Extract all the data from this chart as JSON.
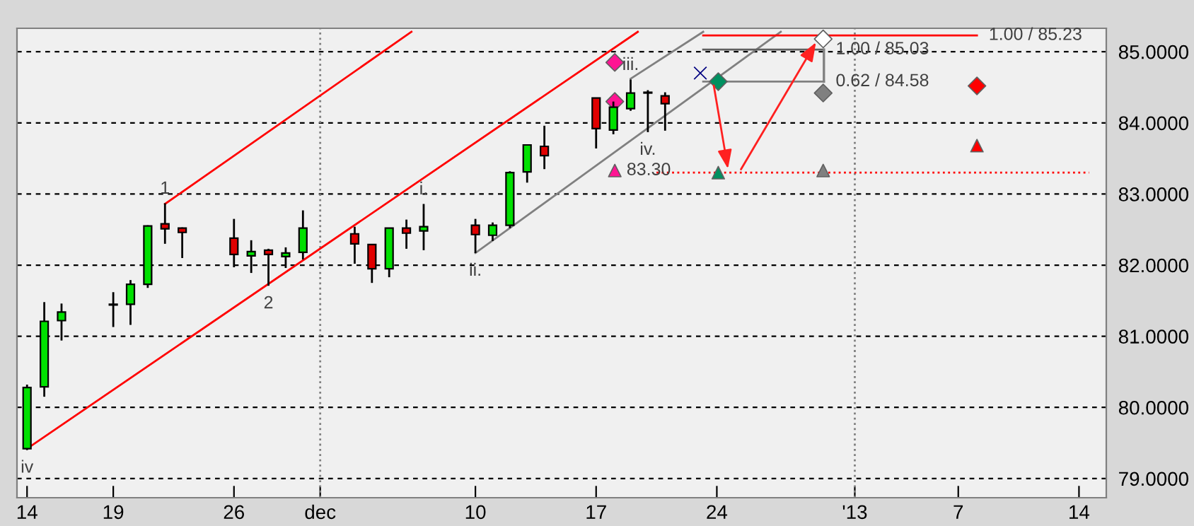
{
  "chart_data": {
    "type": "candlestick",
    "x": [
      "2012-11-14",
      "2012-11-15",
      "2012-11-16",
      "2012-11-19",
      "2012-11-20",
      "2012-11-21",
      "2012-11-22",
      "2012-11-23",
      "2012-11-26",
      "2012-11-27",
      "2012-11-28",
      "2012-11-29",
      "2012-11-30",
      "2012-12-03",
      "2012-12-04",
      "2012-12-05",
      "2012-12-06",
      "2012-12-07",
      "2012-12-10",
      "2012-12-11",
      "2012-12-12",
      "2012-12-13",
      "2012-12-14",
      "2012-12-17",
      "2012-12-18",
      "2012-12-19",
      "2012-12-20",
      "2012-12-21"
    ],
    "ohlc": [
      [
        79.42,
        80.32,
        79.4,
        80.28
      ],
      [
        80.29,
        81.48,
        80.15,
        81.21
      ],
      [
        81.22,
        81.46,
        80.94,
        81.34
      ],
      [
        81.44,
        81.62,
        81.13,
        81.45
      ],
      [
        81.45,
        81.79,
        81.16,
        81.73
      ],
      [
        81.73,
        82.56,
        81.68,
        82.55
      ],
      [
        82.58,
        82.87,
        82.3,
        82.51
      ],
      [
        82.52,
        82.53,
        82.1,
        82.46
      ],
      [
        82.38,
        82.65,
        81.97,
        82.15
      ],
      [
        82.13,
        82.35,
        81.89,
        82.19
      ],
      [
        82.21,
        82.23,
        81.71,
        82.15
      ],
      [
        82.12,
        82.25,
        81.96,
        82.17
      ],
      [
        82.18,
        82.77,
        82.08,
        82.52
      ],
      [
        82.44,
        82.54,
        82.02,
        82.3
      ],
      [
        82.29,
        82.29,
        81.75,
        81.95
      ],
      [
        81.95,
        82.52,
        81.83,
        82.52
      ],
      [
        82.52,
        82.64,
        82.23,
        82.45
      ],
      [
        82.48,
        82.86,
        82.21,
        82.54
      ],
      [
        82.56,
        82.65,
        82.17,
        82.43
      ],
      [
        82.42,
        82.6,
        82.34,
        82.56
      ],
      [
        82.56,
        83.32,
        82.52,
        83.3
      ],
      [
        83.31,
        83.69,
        83.16,
        83.69
      ],
      [
        83.67,
        83.96,
        83.35,
        83.54
      ],
      [
        84.35,
        84.35,
        83.64,
        83.92
      ],
      [
        83.9,
        84.3,
        83.84,
        84.22
      ],
      [
        84.2,
        84.61,
        84.17,
        84.42
      ],
      [
        84.42,
        84.46,
        83.87,
        84.42
      ],
      [
        84.38,
        84.43,
        83.89,
        84.27
      ]
    ],
    "colors": [
      "#00e000",
      "#00e000",
      "#00e000",
      "#000000",
      "#00e000",
      "#00e000",
      "#e00000",
      "#e00000",
      "#e00000",
      "#00e000",
      "#e00000",
      "#00e000",
      "#00e000",
      "#e00000",
      "#e00000",
      "#00e000",
      "#e00000",
      "#00e000",
      "#e00000",
      "#00e000",
      "#00e000",
      "#00e000",
      "#e00000",
      "#e00000",
      "#00e000",
      "#00e000",
      "#000000",
      "#e00000"
    ],
    "series": [
      {
        "type": "line",
        "color": "#ff0000",
        "x": [
          "2012-11-14",
          "2012-12-19T10:00"
        ],
        "values": [
          79.42,
          85.28
        ]
      },
      {
        "type": "line",
        "color": "#ff0000",
        "x": [
          "2012-11-22",
          "2012-12-06T07:00"
        ],
        "values": [
          82.86,
          85.28
        ]
      },
      {
        "type": "line",
        "color": "#808080",
        "x": [
          "2012-12-10",
          "2012-12-27T17:00"
        ],
        "values": [
          82.17,
          85.28
        ]
      },
      {
        "type": "line",
        "color": "#808080",
        "x": [
          "2012-12-19",
          "2012-12-23T05:00"
        ],
        "values": [
          84.62,
          85.28
        ]
      },
      {
        "type": "line",
        "color": "#ff0000",
        "x": [
          "2012-12-23T05:00",
          "2013-01-08T02:00"
        ],
        "values": [
          85.23,
          85.23
        ]
      },
      {
        "type": "line",
        "color": "#606060",
        "x": [
          "2012-12-23T05:00",
          "2012-12-30T05:00"
        ],
        "values": [
          85.03,
          85.03
        ]
      },
      {
        "type": "line",
        "color": "#808080",
        "x": [
          "2012-12-23T05:00",
          "2012-12-30T05:00"
        ],
        "values": [
          84.58,
          84.58
        ]
      },
      {
        "type": "line",
        "color": "#ff0000",
        "line_style": "dotted",
        "x": [
          "2012-12-20T12:00",
          "2013-01-14T14:00"
        ],
        "values": [
          83.3,
          83.3
        ]
      },
      {
        "type": "scatter",
        "color": "#000080",
        "marker": "cross",
        "x": [
          "2012-12-23T01:00"
        ],
        "values": [
          84.7
        ]
      },
      {
        "type": "scatter",
        "color": "#009060",
        "marker": "diamond",
        "x": [
          "2012-12-24T02:00"
        ],
        "values": [
          84.58
        ]
      },
      {
        "type": "scatter",
        "color": "#009060",
        "marker": "triangle",
        "x": [
          "2012-12-24T02:00"
        ],
        "values": [
          83.3
        ]
      },
      {
        "type": "scatter",
        "color": "#808080",
        "marker": "diamond",
        "x": [
          "2012-12-30T04:00"
        ],
        "values": [
          84.42
        ]
      },
      {
        "type": "scatter",
        "color": "#808080",
        "marker": "triangle",
        "x": [
          "2012-12-30T04:00"
        ],
        "values": [
          83.33
        ]
      },
      {
        "type": "scatter",
        "color": "#ffffff",
        "marker": "diamond",
        "x": [
          "2012-12-30T04:00"
        ],
        "values": [
          85.18
        ]
      },
      {
        "type": "scatter",
        "color": "#ff0000",
        "marker": "diamond",
        "x": [
          "2013-01-08T02:00"
        ],
        "values": [
          84.52
        ]
      },
      {
        "type": "scatter",
        "color": "#ff0000",
        "marker": "triangle",
        "x": [
          "2013-01-08T02:00"
        ],
        "values": [
          83.68
        ]
      },
      {
        "type": "scatter",
        "color": "#ff1493",
        "marker": "diamond",
        "x": [
          "2012-12-18T02:00"
        ],
        "values": [
          84.85
        ]
      },
      {
        "type": "scatter",
        "color": "#ff1493",
        "marker": "diamond",
        "x": [
          "2012-12-18T02:00"
        ],
        "values": [
          84.3
        ]
      },
      {
        "type": "scatter",
        "color": "#ff1493",
        "marker": "triangle",
        "x": [
          "2012-12-18T02:00"
        ],
        "values": [
          83.33
        ]
      }
    ],
    "ref_lines": [
      {
        "axis": "x",
        "value": "2012-12-01",
        "color": "#808080",
        "line_style": "dotted"
      },
      {
        "axis": "x",
        "value": "2013-01-01",
        "color": "#808080",
        "line_style": "dotted"
      }
    ],
    "annotations": [
      {
        "text": "1",
        "x": "2012-11-22",
        "y": 82.87
      },
      {
        "text": "2",
        "x": "2012-11-28",
        "y": 81.71
      },
      {
        "text": "iv",
        "x": "2012-11-14",
        "y": 79.4
      },
      {
        "text": "i.",
        "x": "2012-12-07",
        "y": 82.86
      },
      {
        "text": "ii.",
        "x": "2012-12-10",
        "y": 82.17
      },
      {
        "text": "iii.",
        "x": "2012-12-19",
        "y": 84.61
      },
      {
        "text": "iv.",
        "x": "2012-12-20",
        "y": 83.87
      },
      {
        "text": "83.30",
        "x": "2012-12-18T02:00",
        "y": 83.33
      },
      {
        "text": "1.00 / 85.03",
        "x": "2012-12-30T05:00",
        "y": 85.03
      },
      {
        "text": "0.62 / 84.58",
        "x": "2012-12-30T05:00",
        "y": 84.58
      },
      {
        "text": "1.00 / 85.23",
        "x": "2013-01-08T02:00",
        "y": 85.23
      }
    ],
    "xlim": [
      "2012-11-13T10:00",
      "2013-01-15T14:00"
    ],
    "xticks": [
      {
        "value": "2012-11-14",
        "label": "14"
      },
      {
        "value": "2012-11-19",
        "label": "19"
      },
      {
        "value": "2012-11-26",
        "label": "26"
      },
      {
        "value": "2012-12-01",
        "label": "dec"
      },
      {
        "value": "2012-12-10",
        "label": "10"
      },
      {
        "value": "2012-12-17",
        "label": "17"
      },
      {
        "value": "2012-12-24",
        "label": "24"
      },
      {
        "value": "2013-01-01",
        "label": "'13"
      },
      {
        "value": "2013-01-07",
        "label": "7"
      },
      {
        "value": "2013-01-14",
        "label": "14"
      }
    ],
    "ylim": [
      78.73,
      85.33
    ],
    "yticks": [
      {
        "value": 79,
        "label": "79.0000"
      },
      {
        "value": 80,
        "label": "80.0000"
      },
      {
        "value": 81,
        "label": "81.0000"
      },
      {
        "value": 82,
        "label": "82.0000"
      },
      {
        "value": 83,
        "label": "83.0000"
      },
      {
        "value": 84,
        "label": "84.0000"
      },
      {
        "value": 85,
        "label": "85.0000"
      }
    ],
    "grid": "y"
  }
}
